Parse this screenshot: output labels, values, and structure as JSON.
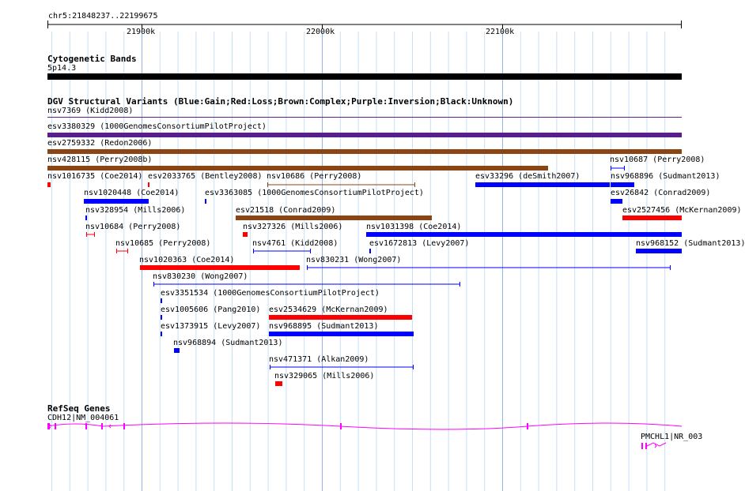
{
  "ruler": {
    "location": "chr5:21848237..22199675",
    "ticks": [
      "21900k",
      "22000k",
      "22100k"
    ]
  },
  "cytobands": {
    "title": "Cytogenetic Bands",
    "band": "5p14.3"
  },
  "dgv": {
    "title": "DGV Structural Variants (Blue:Gain;Red:Loss;Brown:Complex;Purple:Inversion;Black:Unknown)",
    "variants": [
      {
        "name": "nsv7369 (Kidd2008)",
        "type": "Inversion"
      },
      {
        "name": "esv3380329 (1000GenomesConsortiumPilotProject)",
        "type": "Inversion"
      },
      {
        "name": "esv2759332 (Redon2006)",
        "type": "Complex"
      },
      {
        "name": "nsv428115 (Perry2008b)",
        "type": "Complex"
      },
      {
        "name": "nsv10687 (Perry2008)",
        "type": "Gain"
      },
      {
        "name": "nsv1016735 (Coe2014)",
        "type": "Loss"
      },
      {
        "name": "esv2033765 (Bentley2008)",
        "type": "Loss"
      },
      {
        "name": "nsv10686 (Perry2008)",
        "type": "Complex"
      },
      {
        "name": "esv33296 (deSmith2007)",
        "type": "Gain"
      },
      {
        "name": "nsv968896 (Sudmant2013)",
        "type": "Gain"
      },
      {
        "name": "nsv1020448 (Coe2014)",
        "type": "Gain"
      },
      {
        "name": "esv3363085 (1000GenomesConsortiumPilotProject)",
        "type": "Gain"
      },
      {
        "name": "esv26842 (Conrad2009)",
        "type": "Gain"
      },
      {
        "name": "nsv328954 (Mills2006)",
        "type": "Gain"
      },
      {
        "name": "esv21518 (Conrad2009)",
        "type": "Complex"
      },
      {
        "name": "esv2527456 (McKernan2009)",
        "type": "Loss"
      },
      {
        "name": "nsv10684 (Perry2008)",
        "type": "Loss"
      },
      {
        "name": "nsv327326 (Mills2006)",
        "type": "Loss"
      },
      {
        "name": "nsv1031398 (Coe2014)",
        "type": "Gain"
      },
      {
        "name": "nsv10685 (Perry2008)",
        "type": "Loss"
      },
      {
        "name": "nsv4761 (Kidd2008)",
        "type": "Gain"
      },
      {
        "name": "esv1672813 (Levy2007)",
        "type": "Gain"
      },
      {
        "name": "nsv968152 (Sudmant2013)",
        "type": "Gain"
      },
      {
        "name": "nsv1020363 (Coe2014)",
        "type": "Loss"
      },
      {
        "name": "nsv830231 (Wong2007)",
        "type": "Gain"
      },
      {
        "name": "nsv830230 (Wong2007)",
        "type": "Gain"
      },
      {
        "name": "esv3351534 (1000GenomesConsortiumPilotProject)",
        "type": "Gain"
      },
      {
        "name": "esv1005606 (Pang2010)",
        "type": "Gain"
      },
      {
        "name": "esv2534629 (McKernan2009)",
        "type": "Loss"
      },
      {
        "name": "esv1373915 (Levy2007)",
        "type": "Gain"
      },
      {
        "name": "nsv968895 (Sudmant2013)",
        "type": "Gain"
      },
      {
        "name": "nsv968894 (Sudmant2013)",
        "type": "Gain"
      },
      {
        "name": "nsv471371 (Alkan2009)",
        "type": "Gain"
      },
      {
        "name": "nsv329065 (Mills2006)",
        "type": "Loss"
      }
    ]
  },
  "refseq": {
    "title": "RefSeq Genes",
    "genes": [
      "CDH12|NM_004061",
      "PMCHL1|NR_003"
    ]
  },
  "colors": {
    "gain": "#0000ff",
    "loss": "#ff0000",
    "complex": "#8b4513",
    "inversion": "#5a1e8c",
    "unknown": "#000000",
    "gene": "#ff00ff",
    "grid_major": "#8fb5ea",
    "grid_minor": "#c6e0f6"
  }
}
